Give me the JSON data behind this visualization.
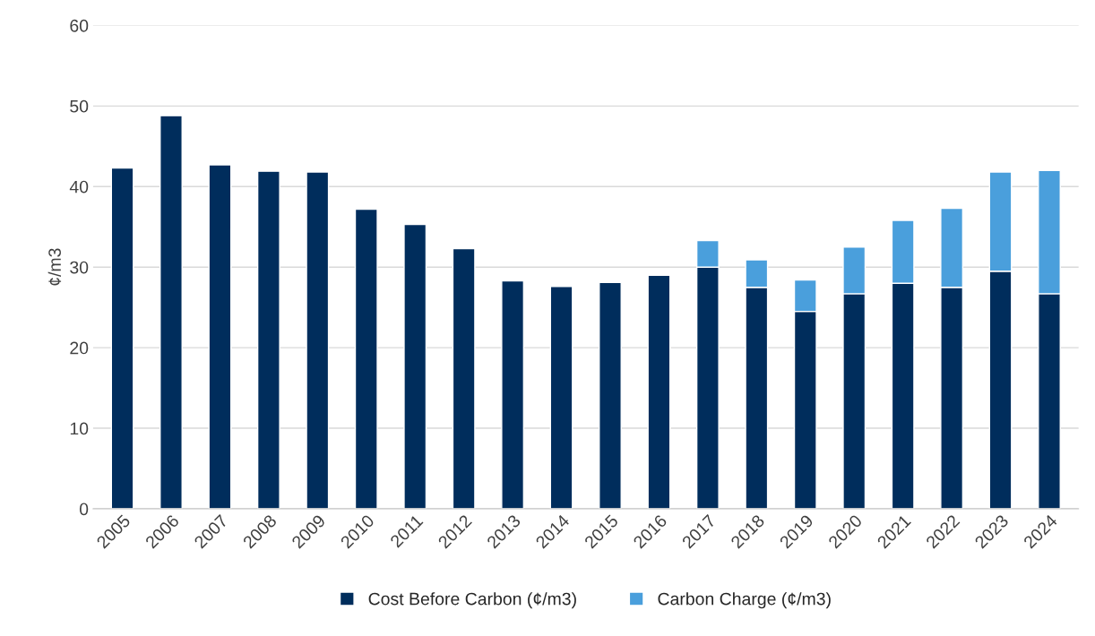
{
  "chart_data": {
    "type": "bar",
    "stacked": true,
    "ylabel": "¢/m3",
    "categories": [
      "2005",
      "2006",
      "2007",
      "2008",
      "2009",
      "2010",
      "2011",
      "2012",
      "2013",
      "2014",
      "2015",
      "2016",
      "2017",
      "2018",
      "2019",
      "2020",
      "2021",
      "2022",
      "2023",
      "2024"
    ],
    "series": [
      {
        "name": "Cost Before Carbon (¢/m3)",
        "color": "#002d5c",
        "values": [
          42.3,
          48.8,
          42.7,
          41.9,
          41.8,
          37.2,
          35.3,
          32.3,
          28.3,
          27.6,
          28.1,
          29.0,
          30.0,
          27.5,
          24.5,
          26.7,
          28.0,
          27.5,
          29.5,
          26.7
        ]
      },
      {
        "name": "Carbon Charge (¢/m3)",
        "color": "#4a9fdc",
        "values": [
          null,
          null,
          null,
          null,
          null,
          null,
          null,
          null,
          null,
          null,
          null,
          null,
          3.3,
          3.4,
          3.9,
          5.8,
          7.8,
          9.8,
          12.3,
          15.3
        ]
      }
    ],
    "ylim": [
      0,
      60
    ],
    "yticks": [
      0,
      10,
      20,
      30,
      40,
      50,
      60
    ],
    "grid": "y",
    "legend": "bottom"
  }
}
